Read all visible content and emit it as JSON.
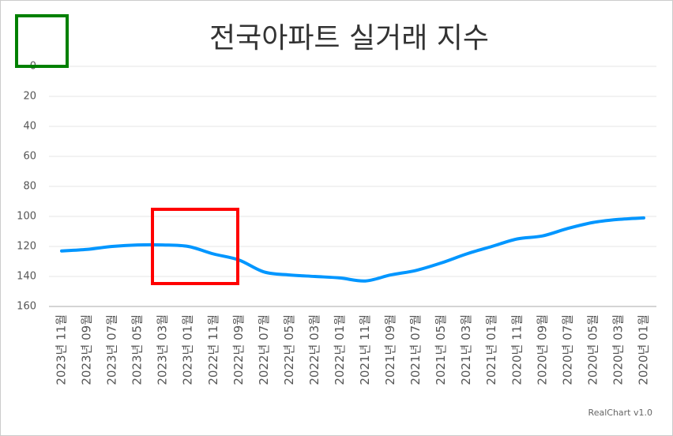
{
  "chart_data": {
    "type": "line",
    "title": "전국아파트 실거래 지수",
    "categories": [
      "2023년 11월",
      "2023년 09월",
      "2023년 07월",
      "2023년 05월",
      "2023년 03월",
      "2023년 01월",
      "2022년 11월",
      "2022년 09월",
      "2022년 07월",
      "2022년 05월",
      "2022년 03월",
      "2022년 01월",
      "2021년 11월",
      "2021년 09월",
      "2021년 07월",
      "2021년 05월",
      "2021년 03월",
      "2021년 01월",
      "2020년 11월",
      "2020년 09월",
      "2020년 07월",
      "2020년 05월",
      "2020년 03월",
      "2020년 01월"
    ],
    "values": [
      123,
      122,
      120,
      119,
      119,
      120,
      125,
      129,
      137,
      139,
      140,
      141,
      143,
      139,
      136,
      131,
      125,
      120,
      115,
      113,
      108,
      104,
      102,
      101
    ],
    "color": "#0096ff",
    "ylim": [
      0,
      160
    ],
    "yticks": [
      0,
      20,
      40,
      60,
      80,
      100,
      120,
      140,
      160
    ],
    "y_inverted": true,
    "grid": true,
    "credits": "RealChart v1.0"
  }
}
